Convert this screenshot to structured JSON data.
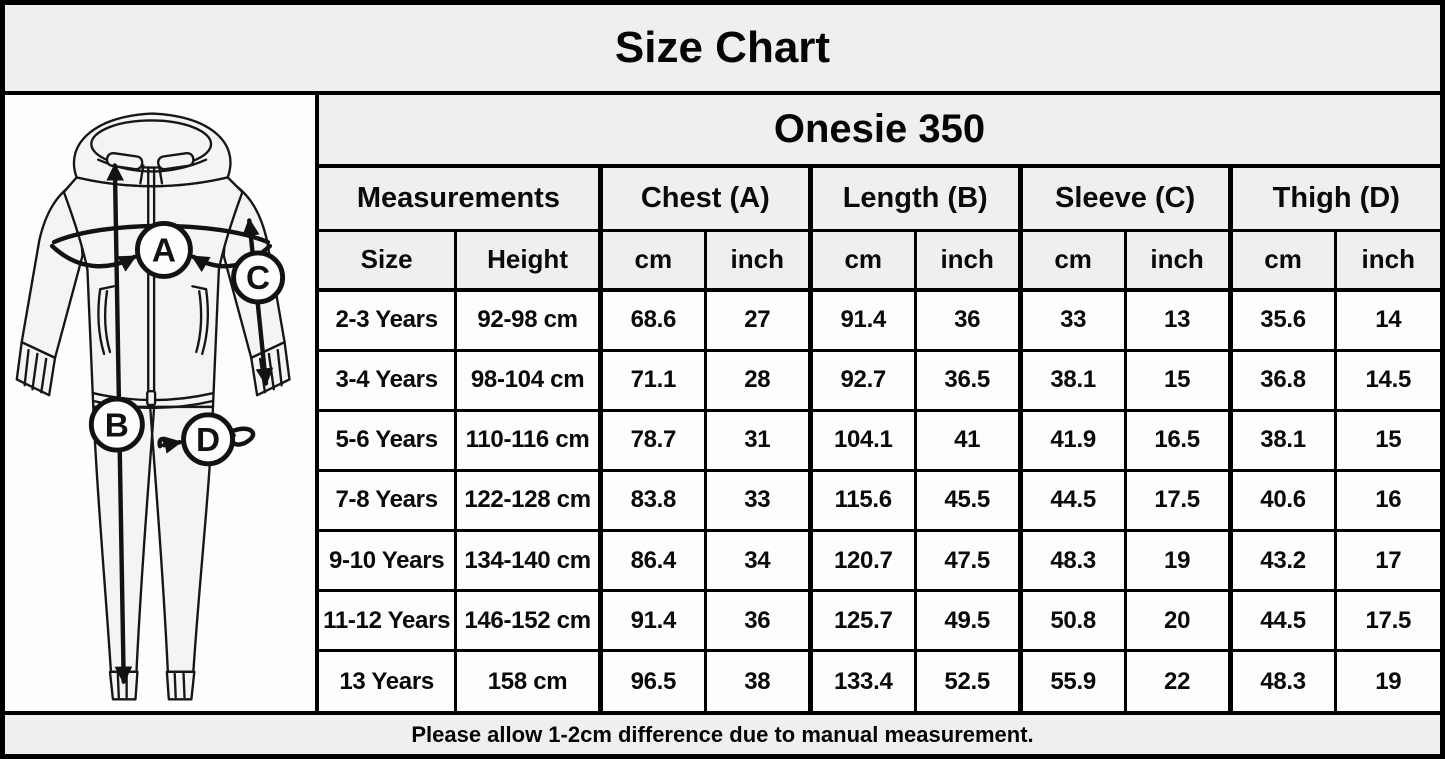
{
  "page": {
    "title": "Size Chart"
  },
  "diagram": {
    "labels": {
      "chest": "A",
      "length": "B",
      "sleeve": "C",
      "thigh": "D"
    }
  },
  "table": {
    "title": "Onesie 350",
    "group_headers": {
      "measurements": "Measurements",
      "chest": "Chest (A)",
      "length": "Length (B)",
      "sleeve": "Sleeve (C)",
      "thigh": "Thigh (D)"
    },
    "sub_headers": {
      "size": "Size",
      "height": "Height",
      "cm": "cm",
      "inch": "inch"
    },
    "col_keys": [
      "size",
      "height",
      "chest-cm",
      "chest-inch",
      "length-cm",
      "length-inch",
      "sleeve-cm",
      "sleeve-inch",
      "thigh-cm",
      "thigh-inch"
    ],
    "rows": [
      [
        "2-3 Years",
        "92-98 cm",
        "68.6",
        "27",
        "91.4",
        "36",
        "33",
        "13",
        "35.6",
        "14"
      ],
      [
        "3-4 Years",
        "98-104 cm",
        "71.1",
        "28",
        "92.7",
        "36.5",
        "38.1",
        "15",
        "36.8",
        "14.5"
      ],
      [
        "5-6 Years",
        "110-116 cm",
        "78.7",
        "31",
        "104.1",
        "41",
        "41.9",
        "16.5",
        "38.1",
        "15"
      ],
      [
        "7-8 Years",
        "122-128 cm",
        "83.8",
        "33",
        "115.6",
        "45.5",
        "44.5",
        "17.5",
        "40.6",
        "16"
      ],
      [
        "9-10 Years",
        "134-140 cm",
        "86.4",
        "34",
        "120.7",
        "47.5",
        "48.3",
        "19",
        "43.2",
        "17"
      ],
      [
        "11-12 Years",
        "146-152 cm",
        "91.4",
        "36",
        "125.7",
        "49.5",
        "50.8",
        "20",
        "44.5",
        "17.5"
      ],
      [
        "13 Years",
        "158 cm",
        "96.5",
        "38",
        "133.4",
        "52.5",
        "55.9",
        "22",
        "48.3",
        "19"
      ]
    ]
  },
  "footer": {
    "note": "Please allow 1-2cm difference due to manual measurement."
  }
}
